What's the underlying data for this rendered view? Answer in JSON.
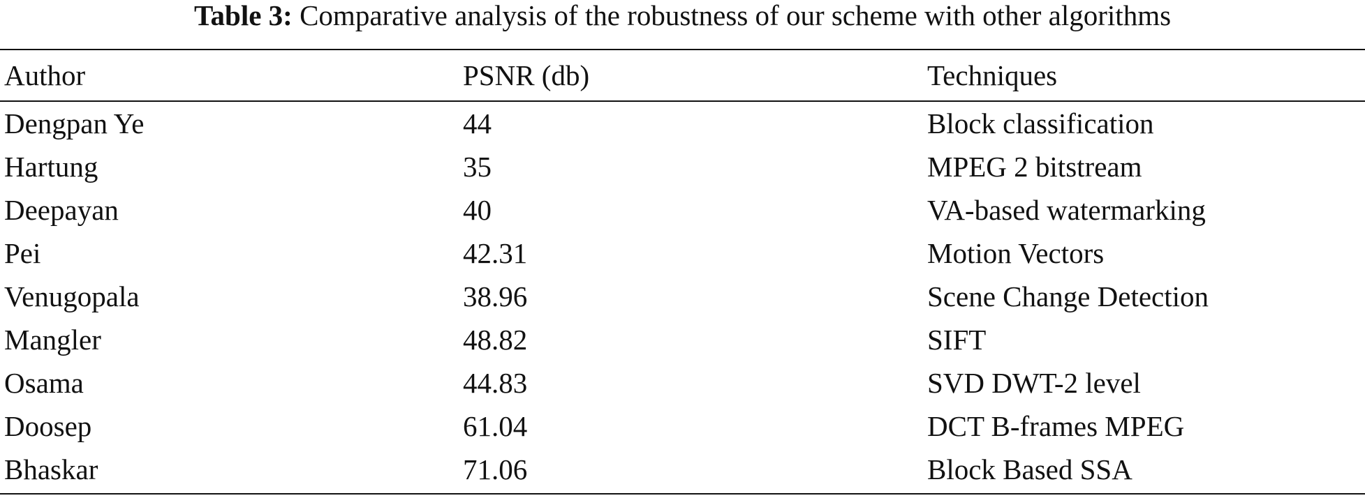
{
  "caption": {
    "label": "Table 3:",
    "text": "Comparative analysis of the robustness of our scheme with other algorithms"
  },
  "table": {
    "headers": [
      "Author",
      "PSNR (db)",
      "Techniques"
    ],
    "rows": [
      [
        "Dengpan Ye",
        "44",
        "Block classification"
      ],
      [
        "Hartung",
        "35",
        "MPEG 2 bitstream"
      ],
      [
        "Deepayan",
        "40",
        "VA-based watermarking"
      ],
      [
        "Pei",
        "42.31",
        "Motion Vectors"
      ],
      [
        "Venugopala",
        "38.96",
        "Scene Change Detection"
      ],
      [
        "Mangler",
        "48.82",
        "SIFT"
      ],
      [
        "Osama",
        "44.83",
        "SVD DWT-2 level"
      ],
      [
        "Doosep",
        "61.04",
        "DCT B-frames MPEG"
      ],
      [
        "Bhaskar",
        "71.06",
        "Block Based SSA"
      ]
    ]
  }
}
